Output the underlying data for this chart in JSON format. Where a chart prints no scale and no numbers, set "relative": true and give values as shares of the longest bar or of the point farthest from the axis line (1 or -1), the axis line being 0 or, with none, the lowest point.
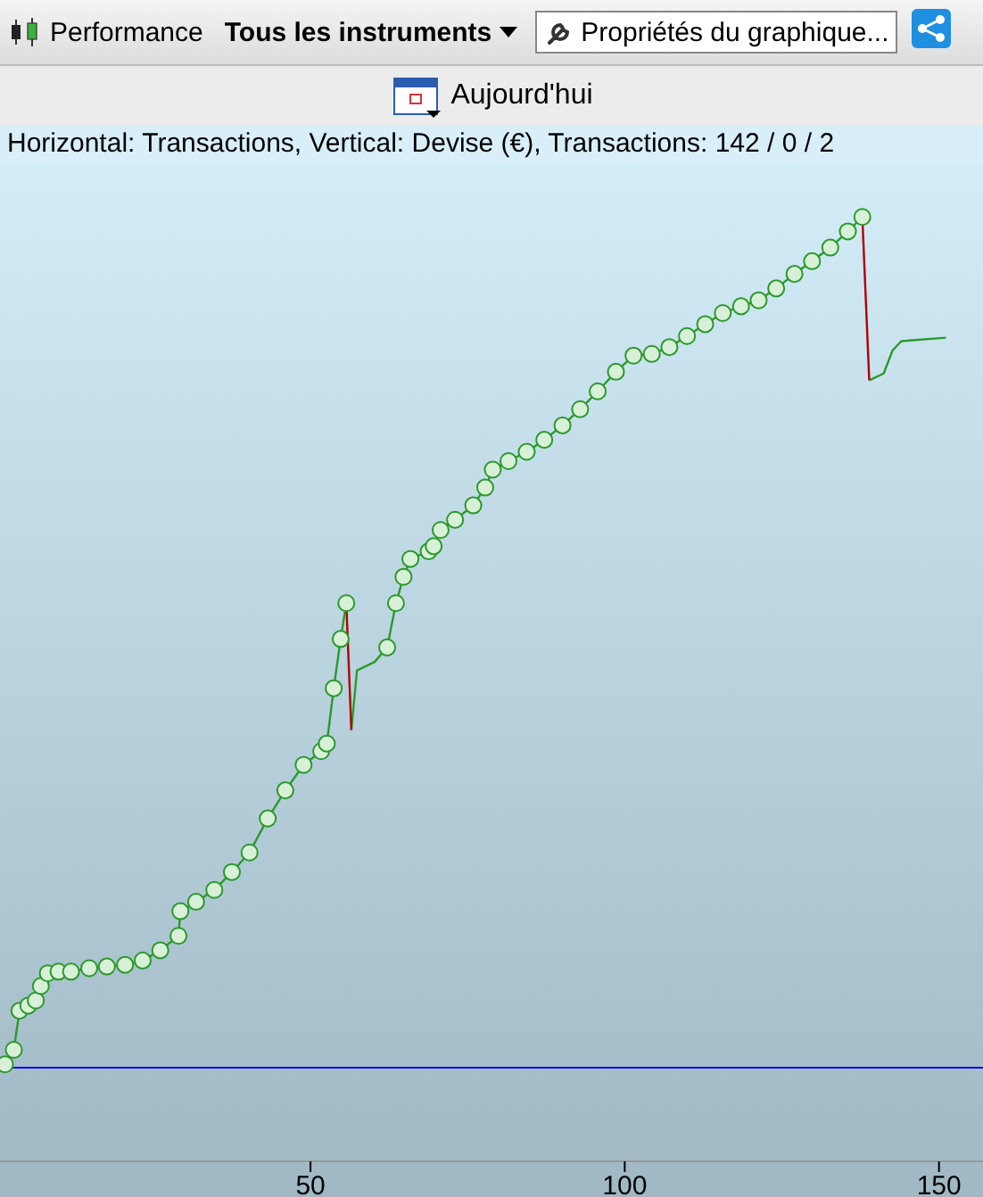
{
  "chart_data": {
    "type": "line",
    "title": "Horizontal: Transactions, Vertical: Devise (€), Transactions: 142 / 0 / 2",
    "relative": true,
    "annotations": [
      "Performance",
      "Tous les instruments",
      "Propriétés du graphique...",
      "Aujourd'hui"
    ],
    "xlim": [
      0.6,
      157
    ],
    "xticks": [
      50,
      100,
      150
    ],
    "grid": false,
    "ref_lines": [
      {
        "axis": "y",
        "value": 0,
        "color": "#0000ff"
      }
    ],
    "series": [
      {
        "color": "#2a9a2a",
        "marker": "none",
        "x": [
          1.4,
          2.8,
          3.7,
          5.1,
          6.3,
          7.1,
          8.2,
          9.9,
          11.9,
          14.8,
          17.6,
          20.5,
          23.3,
          26.1,
          29.0,
          29.3,
          31.8,
          34.7,
          37.5,
          40.3,
          43.2,
          46.0,
          48.9,
          51.7,
          52.6,
          53.7,
          54.8,
          55.7,
          56.1,
          56.5,
          57.4,
          60.2,
          62.2,
          63.6,
          64.8,
          65.9,
          68.8,
          69.6,
          70.7,
          73.0,
          75.9,
          77.8,
          79.0,
          81.5,
          84.4,
          87.2,
          90.1,
          92.9,
          95.7,
          98.6,
          101.4,
          104.3,
          107.1,
          109.9,
          112.8,
          115.6,
          118.5,
          121.3,
          124.1,
          127.0,
          129.8,
          132.7,
          135.5,
          137.8,
          138.3,
          138.9,
          141.2,
          142.6,
          144.0,
          151.1
        ],
        "values": [
          0.004,
          0.021,
          0.067,
          0.073,
          0.079,
          0.096,
          0.111,
          0.113,
          0.113,
          0.117,
          0.119,
          0.121,
          0.126,
          0.138,
          0.155,
          0.184,
          0.195,
          0.209,
          0.23,
          0.253,
          0.293,
          0.326,
          0.356,
          0.372,
          0.381,
          0.446,
          0.504,
          0.546,
          null,
          0.397,
          0.467,
          0.477,
          0.494,
          0.546,
          0.577,
          0.598,
          0.607,
          0.613,
          0.632,
          0.644,
          0.661,
          0.682,
          0.703,
          0.713,
          0.724,
          0.738,
          0.755,
          0.774,
          0.795,
          0.818,
          0.837,
          0.839,
          0.847,
          0.86,
          0.874,
          0.887,
          0.895,
          0.902,
          0.916,
          0.933,
          0.948,
          0.964,
          0.983,
          1,
          null,
          0.808,
          0.816,
          0.843,
          0.854,
          0.858
        ]
      },
      {
        "type": "scatter",
        "color": "#2a9a2a",
        "marker": "circle",
        "x": [
          1.4,
          2.8,
          3.7,
          5.1,
          6.3,
          7.1,
          8.2,
          9.9,
          11.9,
          14.8,
          17.6,
          20.5,
          23.3,
          26.1,
          29.0,
          29.3,
          31.8,
          34.7,
          37.5,
          40.3,
          43.2,
          46.0,
          48.9,
          51.7,
          52.6,
          53.7,
          54.8,
          55.7,
          62.2,
          63.6,
          64.8,
          65.9,
          68.8,
          69.6,
          70.7,
          73.0,
          75.9,
          77.8,
          79.0,
          81.5,
          84.4,
          87.2,
          90.1,
          92.9,
          95.7,
          98.6,
          101.4,
          104.3,
          107.1,
          109.9,
          112.8,
          115.6,
          118.5,
          121.3,
          124.1,
          127.0,
          129.8,
          132.7,
          135.5,
          137.8
        ],
        "values": [
          0.004,
          0.021,
          0.067,
          0.073,
          0.079,
          0.096,
          0.111,
          0.113,
          0.113,
          0.117,
          0.119,
          0.121,
          0.126,
          0.138,
          0.155,
          0.184,
          0.195,
          0.209,
          0.23,
          0.253,
          0.293,
          0.326,
          0.356,
          0.372,
          0.381,
          0.446,
          0.504,
          0.546,
          0.494,
          0.546,
          0.577,
          0.598,
          0.607,
          0.613,
          0.632,
          0.644,
          0.661,
          0.682,
          0.703,
          0.713,
          0.724,
          0.738,
          0.755,
          0.774,
          0.795,
          0.818,
          0.837,
          0.839,
          0.847,
          0.86,
          0.874,
          0.887,
          0.895,
          0.902,
          0.916,
          0.933,
          0.948,
          0.964,
          0.983,
          1
        ]
      },
      {
        "color": "#b00000",
        "marker": "none",
        "x": [
          55.7,
          56.5,
          97,
          137.8,
          138.9
        ],
        "values": [
          0.546,
          0.397,
          null,
          1,
          0.808
        ]
      }
    ]
  }
}
